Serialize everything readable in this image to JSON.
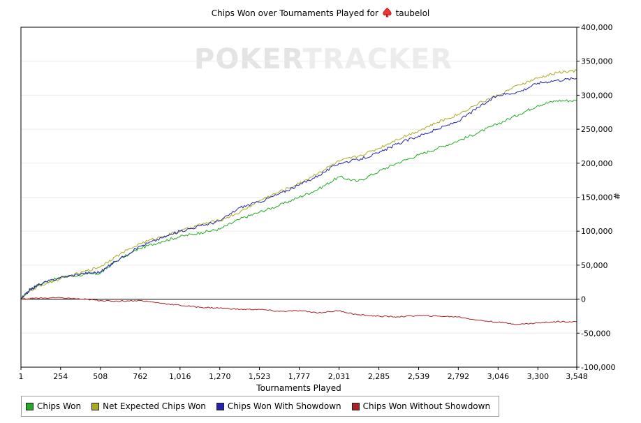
{
  "title": {
    "prefix": "Chips Won over Tournaments Played for",
    "player": "taubelol",
    "icon": "spade-icon"
  },
  "watermark": {
    "bold": "POKER",
    "light": "TRACKER"
  },
  "chart_data": {
    "type": "line",
    "xlabel": "Tournaments Played",
    "ylabel": "#",
    "xlim": [
      1,
      3548
    ],
    "ylim": [
      -100000,
      400000
    ],
    "x_ticks": [
      "1",
      "254",
      "508",
      "762",
      "1,016",
      "1,270",
      "1,523",
      "1,777",
      "2,031",
      "2,285",
      "2,539",
      "2,792",
      "3,046",
      "3,300",
      "3,548"
    ],
    "y_ticks": [
      "400,000",
      "350,000",
      "300,000",
      "250,000",
      "200,000",
      "150,000",
      "100,000",
      "50,000",
      "0",
      "-50,000",
      "-100,000"
    ],
    "y_tick_values": [
      400000,
      350000,
      300000,
      250000,
      200000,
      150000,
      100000,
      50000,
      0,
      -50000,
      -100000
    ],
    "x_tick_values": [
      1,
      254,
      508,
      762,
      1016,
      1270,
      1523,
      1777,
      2031,
      2285,
      2539,
      2792,
      3046,
      3300,
      3548
    ],
    "grid": true,
    "legend_position": "bottom-left",
    "series": [
      {
        "name": "Chips Won",
        "color": "#22aa22",
        "x": [
          1,
          60,
          120,
          254,
          400,
          508,
          600,
          762,
          900,
          1016,
          1150,
          1270,
          1400,
          1523,
          1650,
          1777,
          1900,
          2031,
          2150,
          2285,
          2400,
          2539,
          2660,
          2792,
          2920,
          3046,
          3180,
          3300,
          3420,
          3548
        ],
        "y": [
          0,
          15000,
          22000,
          32000,
          36000,
          38000,
          55000,
          75000,
          85000,
          92000,
          98000,
          103000,
          118000,
          128000,
          138000,
          150000,
          162000,
          180000,
          173000,
          188000,
          200000,
          212000,
          222000,
          233000,
          245000,
          258000,
          272000,
          285000,
          292000,
          292000
        ]
      },
      {
        "name": "Net Expected Chips Won",
        "color": "#aaaa22",
        "x": [
          1,
          60,
          120,
          254,
          400,
          508,
          600,
          762,
          900,
          1016,
          1150,
          1270,
          1400,
          1523,
          1650,
          1777,
          1900,
          2031,
          2150,
          2285,
          2400,
          2539,
          2660,
          2792,
          2920,
          3046,
          3180,
          3300,
          3420,
          3548
        ],
        "y": [
          0,
          12000,
          20000,
          30000,
          40000,
          48000,
          62000,
          82000,
          92000,
          100000,
          110000,
          116000,
          128000,
          145000,
          158000,
          170000,
          186000,
          203000,
          210000,
          222000,
          235000,
          248000,
          260000,
          272000,
          288000,
          300000,
          315000,
          325000,
          333000,
          336000
        ]
      },
      {
        "name": "Chips Won With Showdown",
        "color": "#2222aa",
        "x": [
          1,
          60,
          120,
          254,
          400,
          508,
          600,
          762,
          900,
          1016,
          1150,
          1270,
          1400,
          1523,
          1650,
          1777,
          1900,
          2031,
          2150,
          2285,
          2400,
          2539,
          2660,
          2792,
          2920,
          3046,
          3180,
          3300,
          3420,
          3548
        ],
        "y": [
          0,
          14000,
          22000,
          32000,
          38000,
          40000,
          55000,
          78000,
          90000,
          100000,
          108000,
          115000,
          135000,
          143000,
          155000,
          168000,
          182000,
          200000,
          205000,
          215000,
          228000,
          240000,
          250000,
          262000,
          282000,
          300000,
          305000,
          318000,
          322000,
          325000
        ]
      },
      {
        "name": "Chips Won Without Showdown",
        "color": "#aa2222",
        "x": [
          1,
          60,
          120,
          254,
          400,
          508,
          600,
          762,
          900,
          1016,
          1150,
          1270,
          1400,
          1523,
          1650,
          1777,
          1900,
          2031,
          2150,
          2285,
          2400,
          2539,
          2660,
          2792,
          2920,
          3046,
          3180,
          3300,
          3420,
          3548
        ],
        "y": [
          0,
          1000,
          1500,
          2000,
          0,
          -2000,
          -3000,
          -2000,
          -6000,
          -9000,
          -12000,
          -13000,
          -15000,
          -15000,
          -18000,
          -17000,
          -20000,
          -17000,
          -23000,
          -25000,
          -26000,
          -24000,
          -25000,
          -26000,
          -31000,
          -34000,
          -37000,
          -35000,
          -33000,
          -33000
        ]
      }
    ]
  }
}
